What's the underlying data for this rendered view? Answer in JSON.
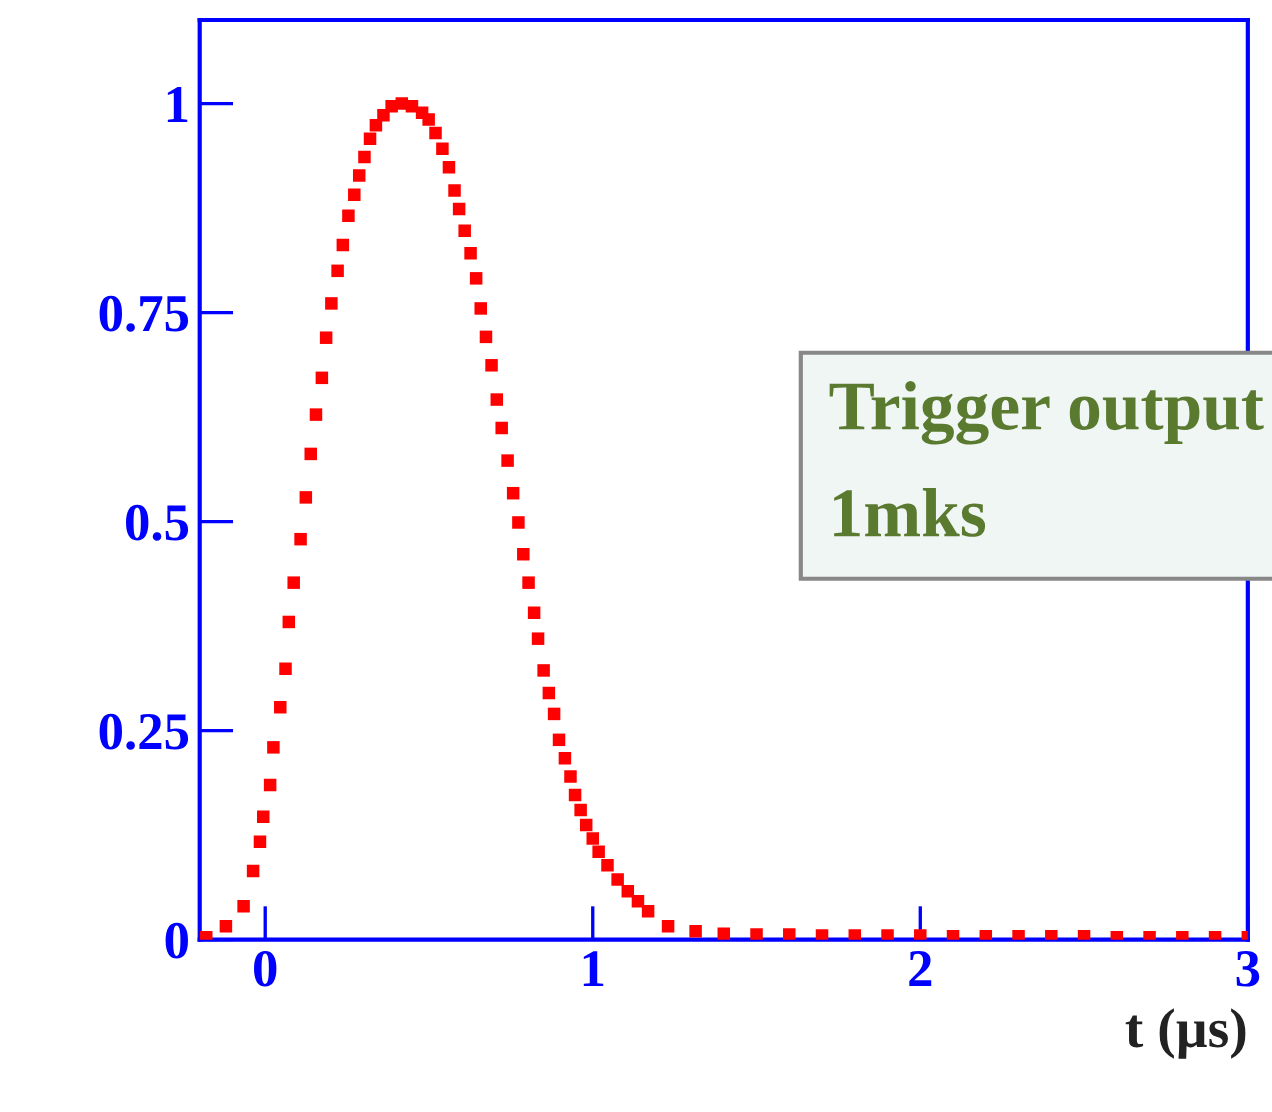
{
  "chart_data": {
    "type": "scatter",
    "xlabel": "t (µs)",
    "annotations": [
      "Trigger output\n1mks"
    ],
    "xlim": [
      -0.2,
      3
    ],
    "xticks": [
      0,
      1,
      2,
      3
    ],
    "ylim": [
      0,
      1.1
    ],
    "yticks": [
      0,
      0.25,
      0.5,
      0.75,
      1
    ],
    "grid": false,
    "marker": "square",
    "series": [
      {
        "color": "#ff0000",
        "x": [
          -0.18,
          -0.12,
          -0.066,
          -0.037,
          -0.016,
          -0.006,
          0.015,
          0.025,
          0.046,
          0.062,
          0.072,
          0.087,
          0.108,
          0.124,
          0.139,
          0.155,
          0.173,
          0.186,
          0.202,
          0.221,
          0.237,
          0.254,
          0.272,
          0.287,
          0.303,
          0.32,
          0.338,
          0.361,
          0.386,
          0.417,
          0.448,
          0.479,
          0.499,
          0.52,
          0.541,
          0.561,
          0.578,
          0.592,
          0.609,
          0.627,
          0.644,
          0.658,
          0.674,
          0.691,
          0.707,
          0.722,
          0.74,
          0.757,
          0.773,
          0.788,
          0.804,
          0.821,
          0.833,
          0.85,
          0.866,
          0.882,
          0.897,
          0.915,
          0.932,
          0.946,
          0.963,
          0.98,
          1.0,
          1.018,
          1.045,
          1.076,
          1.107,
          1.138,
          1.169,
          1.23,
          1.314,
          1.4,
          1.5,
          1.6,
          1.7,
          1.8,
          1.9,
          2.0,
          2.1,
          2.2,
          2.3,
          2.4,
          2.5,
          2.6,
          2.7,
          2.8,
          2.9,
          3.0
        ],
        "values": [
          0.003,
          0.016,
          0.04,
          0.082,
          0.117,
          0.147,
          0.185,
          0.23,
          0.278,
          0.324,
          0.38,
          0.427,
          0.479,
          0.529,
          0.581,
          0.628,
          0.672,
          0.72,
          0.761,
          0.8,
          0.831,
          0.866,
          0.891,
          0.914,
          0.936,
          0.958,
          0.974,
          0.986,
          0.997,
          1.0,
          0.997,
          0.989,
          0.981,
          0.965,
          0.946,
          0.924,
          0.896,
          0.874,
          0.848,
          0.821,
          0.791,
          0.755,
          0.721,
          0.687,
          0.646,
          0.612,
          0.573,
          0.534,
          0.499,
          0.461,
          0.427,
          0.391,
          0.36,
          0.322,
          0.295,
          0.27,
          0.239,
          0.217,
          0.195,
          0.173,
          0.155,
          0.137,
          0.121,
          0.105,
          0.089,
          0.072,
          0.058,
          0.046,
          0.034,
          0.016,
          0.01,
          0.007,
          0.006,
          0.006,
          0.005,
          0.005,
          0.005,
          0.005,
          0.004,
          0.004,
          0.004,
          0.004,
          0.004,
          0.003,
          0.003,
          0.003,
          0.003,
          0.003
        ]
      }
    ]
  }
}
